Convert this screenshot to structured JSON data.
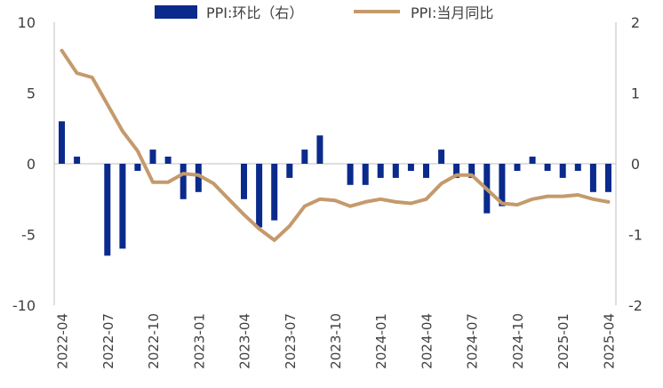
{
  "chart_data": {
    "type": "bar+line",
    "legend": {
      "placement": "top-center",
      "bar_label": "PPI:环比（右）",
      "line_label": "PPI:当月同比"
    },
    "colors": {
      "bar": "#0a2a8c",
      "line": "#c49a6c",
      "axis": "#bfbfbf",
      "text": "#404040"
    },
    "left_axis": {
      "min": -10,
      "max": 10,
      "ticks": [
        "10",
        "5",
        "0",
        "-5",
        "-10"
      ],
      "tick_values": [
        10,
        5,
        0,
        -5,
        -10
      ]
    },
    "right_axis": {
      "min": -2,
      "max": 2,
      "ticks": [
        "2",
        "1",
        "0",
        "-1",
        "-2"
      ],
      "tick_values": [
        2,
        1,
        0,
        -1,
        -2
      ]
    },
    "x_tick_labels": [
      "2022-04",
      "2022-07",
      "2022-10",
      "2023-01",
      "2023-04",
      "2023-07",
      "2023-10",
      "2024-01",
      "2024-04",
      "2024-07",
      "2024-10",
      "2025-01",
      "2025-04"
    ],
    "categories": [
      "2022-04",
      "2022-05",
      "2022-06",
      "2022-07",
      "2022-08",
      "2022-09",
      "2022-10",
      "2022-11",
      "2022-12",
      "2023-01",
      "2023-02",
      "2023-03",
      "2023-04",
      "2023-05",
      "2023-06",
      "2023-07",
      "2023-08",
      "2023-09",
      "2023-10",
      "2023-11",
      "2023-12",
      "2024-01",
      "2024-02",
      "2024-03",
      "2024-04",
      "2024-05",
      "2024-06",
      "2024-07",
      "2024-08",
      "2024-09",
      "2024-10",
      "2024-11",
      "2024-12",
      "2025-01",
      "2025-02",
      "2025-03",
      "2025-04"
    ],
    "series": [
      {
        "name": "PPI:环比（右）",
        "type": "bar",
        "axis": "right",
        "values": [
          0.6,
          0.1,
          0.0,
          -1.3,
          -1.2,
          -0.1,
          0.2,
          0.1,
          -0.5,
          -0.4,
          0.0,
          0.0,
          -0.5,
          -0.9,
          -0.8,
          -0.2,
          0.2,
          0.4,
          0.0,
          -0.3,
          -0.3,
          -0.2,
          -0.2,
          -0.1,
          -0.2,
          0.2,
          -0.2,
          -0.2,
          -0.7,
          -0.6,
          -0.1,
          0.1,
          -0.1,
          -0.2,
          -0.1,
          -0.4,
          -0.4
        ]
      },
      {
        "name": "PPI:当月同比",
        "type": "line",
        "axis": "left",
        "values": [
          8.0,
          6.4,
          6.1,
          4.2,
          2.3,
          0.9,
          -1.3,
          -1.3,
          -0.7,
          -0.8,
          -1.4,
          -2.5,
          -3.6,
          -4.6,
          -5.4,
          -4.4,
          -3.0,
          -2.5,
          -2.6,
          -3.0,
          -2.7,
          -2.5,
          -2.7,
          -2.8,
          -2.5,
          -1.4,
          -0.8,
          -0.8,
          -1.8,
          -2.8,
          -2.9,
          -2.5,
          -2.3,
          -2.3,
          -2.2,
          -2.5,
          -2.7
        ]
      }
    ]
  }
}
